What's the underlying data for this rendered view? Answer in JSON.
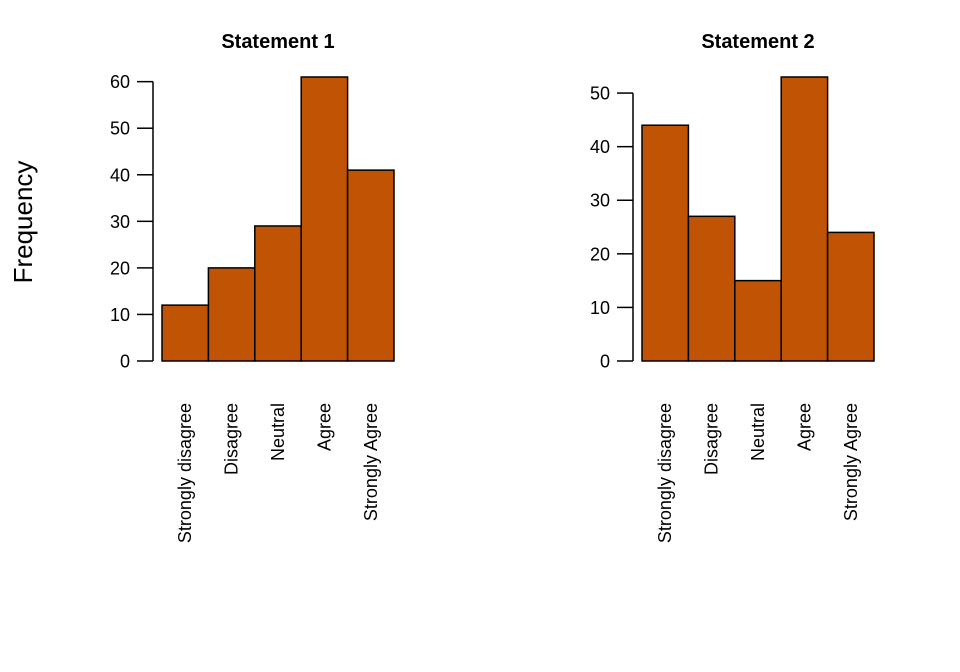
{
  "ylabel": "Frequency",
  "bar_color": "#c05304",
  "chart_data": [
    {
      "type": "bar",
      "title": "Statement 1",
      "categories": [
        "Strongly disagree",
        "Disagree",
        "Neutral",
        "Agree",
        "Strongly Agree"
      ],
      "values": [
        12,
        20,
        29,
        61,
        41
      ],
      "yticks": [
        0,
        10,
        20,
        30,
        40,
        50,
        60
      ],
      "ylim": [
        0,
        61
      ],
      "ylabel": "Frequency",
      "grid": false
    },
    {
      "type": "bar",
      "title": "Statement 2",
      "categories": [
        "Strongly disagree",
        "Disagree",
        "Neutral",
        "Agree",
        "Strongly Agree"
      ],
      "values": [
        44,
        27,
        15,
        53,
        24
      ],
      "yticks": [
        0,
        10,
        20,
        30,
        40,
        50
      ],
      "ylim": [
        0,
        53
      ],
      "grid": false
    }
  ]
}
